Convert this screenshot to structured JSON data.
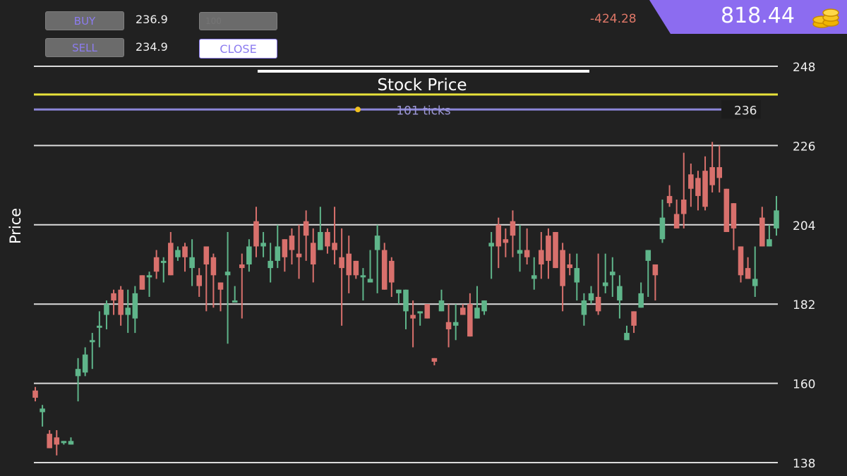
{
  "trade_panel": {
    "buy_label": "BUY",
    "sell_label": "SELL",
    "buy_price": "236.9",
    "sell_price": "234.9",
    "quantity_placeholder": "100",
    "close_label": "CLOSE"
  },
  "account": {
    "pnl": "-424.28",
    "balance": "818.44",
    "balance_icon": "coins-icon"
  },
  "chart_data": {
    "type": "candlestick",
    "title": "Stock Price",
    "ylabel": "Price",
    "ylim": [
      138,
      248
    ],
    "yticks": [
      "248",
      "226",
      "204",
      "182",
      "160",
      "138"
    ],
    "ytick_values": [
      248,
      226,
      204,
      182,
      160,
      138
    ],
    "grid": true,
    "current_price": 236,
    "current_price_label": "236",
    "timer_label": "101 ticks",
    "up_color": "#5fb58a",
    "down_color": "#d8706c",
    "candles": [
      [
        158,
        156,
        159,
        155
      ],
      [
        152,
        153,
        154,
        148
      ],
      [
        146,
        142,
        147,
        142
      ],
      [
        145,
        143,
        147,
        140
      ],
      [
        144,
        144,
        144,
        143
      ],
      [
        143,
        144,
        145,
        143
      ],
      [
        162,
        164,
        167,
        155
      ],
      [
        163,
        168,
        170,
        162
      ],
      [
        172,
        172,
        174,
        164
      ],
      [
        176,
        176,
        180,
        170
      ],
      [
        179,
        182,
        183,
        175
      ],
      [
        185,
        183,
        186,
        179
      ],
      [
        186,
        179,
        187,
        176
      ],
      [
        179,
        181,
        186,
        174
      ],
      [
        178,
        185,
        187,
        174
      ],
      [
        190,
        186,
        188,
        186
      ],
      [
        190,
        190,
        191,
        184
      ],
      [
        195,
        191,
        197,
        189
      ],
      [
        194,
        194,
        195,
        188
      ],
      [
        199,
        190,
        202,
        190
      ],
      [
        195,
        197,
        198,
        194
      ],
      [
        198,
        195,
        199,
        191
      ],
      [
        192,
        195,
        200,
        187
      ],
      [
        190,
        187,
        192,
        184
      ],
      [
        198,
        193,
        198,
        180
      ],
      [
        195,
        190,
        196,
        181
      ],
      [
        188,
        186,
        188,
        180
      ],
      [
        190,
        191,
        202,
        171
      ],
      [
        183,
        183,
        187,
        185
      ],
      [
        193,
        192,
        196,
        178
      ],
      [
        193,
        198,
        200,
        191
      ],
      [
        205,
        198,
        209,
        195
      ],
      [
        198,
        199,
        202,
        195
      ],
      [
        192,
        194,
        199,
        188
      ],
      [
        194,
        198,
        204,
        192
      ],
      [
        200,
        195,
        198,
        191
      ],
      [
        201,
        197,
        203,
        193
      ],
      [
        196,
        195,
        204,
        189
      ],
      [
        205,
        201,
        208,
        194
      ],
      [
        199,
        193,
        203,
        188
      ],
      [
        197,
        202,
        209,
        200
      ],
      [
        202,
        198,
        203,
        196
      ],
      [
        199,
        197,
        209,
        193
      ],
      [
        195,
        192,
        203,
        176
      ],
      [
        196,
        190,
        201,
        185
      ],
      [
        194,
        190,
        193,
        189
      ],
      [
        190,
        190,
        192,
        183
      ],
      [
        188,
        189,
        197,
        190
      ],
      [
        197,
        201,
        204,
        185
      ],
      [
        197,
        186,
        199,
        187
      ],
      [
        194,
        188,
        195,
        184
      ],
      [
        185,
        186,
        186,
        182
      ],
      [
        180,
        186,
        184,
        175
      ],
      [
        179,
        178,
        183,
        170
      ],
      [
        180,
        180,
        180,
        176
      ],
      [
        182,
        178,
        178,
        178
      ],
      [
        167,
        166,
        167,
        165
      ],
      [
        180,
        183,
        186,
        180
      ],
      [
        177,
        175,
        182,
        170
      ],
      [
        176,
        177,
        182,
        172
      ],
      [
        181,
        179,
        182,
        179
      ],
      [
        182,
        173,
        185,
        173
      ],
      [
        178,
        181,
        187,
        178
      ],
      [
        180,
        183,
        183,
        179
      ],
      [
        198,
        199,
        202,
        189
      ],
      [
        204,
        198,
        206,
        192
      ],
      [
        200,
        199,
        203,
        195
      ],
      [
        205,
        201,
        208,
        195
      ],
      [
        196,
        197,
        204,
        191
      ],
      [
        197,
        195,
        203,
        193
      ],
      [
        189,
        190,
        195,
        186
      ],
      [
        197,
        193,
        202,
        189
      ],
      [
        201,
        194,
        203,
        189
      ],
      [
        202,
        192,
        201,
        192
      ],
      [
        197,
        187,
        199,
        180
      ],
      [
        193,
        192,
        196,
        190
      ],
      [
        188,
        192,
        196,
        183
      ],
      [
        179,
        183,
        185,
        176
      ],
      [
        183,
        185,
        187,
        182
      ],
      [
        184,
        180,
        196,
        179
      ],
      [
        187,
        188,
        196,
        185
      ],
      [
        190,
        191,
        195,
        184
      ],
      [
        183,
        187,
        190,
        178
      ],
      [
        172,
        174,
        176,
        172
      ],
      [
        180,
        176,
        180,
        174
      ],
      [
        181,
        185,
        188,
        182
      ],
      [
        194,
        197,
        197,
        184
      ],
      [
        193,
        190,
        193,
        183
      ],
      [
        200,
        206,
        211,
        199
      ],
      [
        212,
        210,
        215,
        209
      ],
      [
        207,
        203,
        211,
        204
      ],
      [
        211,
        207,
        224,
        203
      ],
      [
        218,
        214,
        221,
        209
      ],
      [
        217,
        212,
        219,
        208
      ],
      [
        219,
        209,
        223,
        208
      ],
      [
        220,
        215,
        227,
        213
      ],
      [
        220,
        217,
        226,
        213
      ],
      [
        214,
        202,
        209,
        205
      ],
      [
        210,
        203,
        210,
        197
      ],
      [
        198,
        190,
        197,
        188
      ],
      [
        192,
        189,
        195,
        190
      ],
      [
        187,
        189,
        198,
        184
      ],
      [
        206,
        198,
        209,
        202
      ],
      [
        198,
        200,
        204,
        198
      ],
      [
        203,
        208,
        212,
        201
      ]
    ]
  }
}
